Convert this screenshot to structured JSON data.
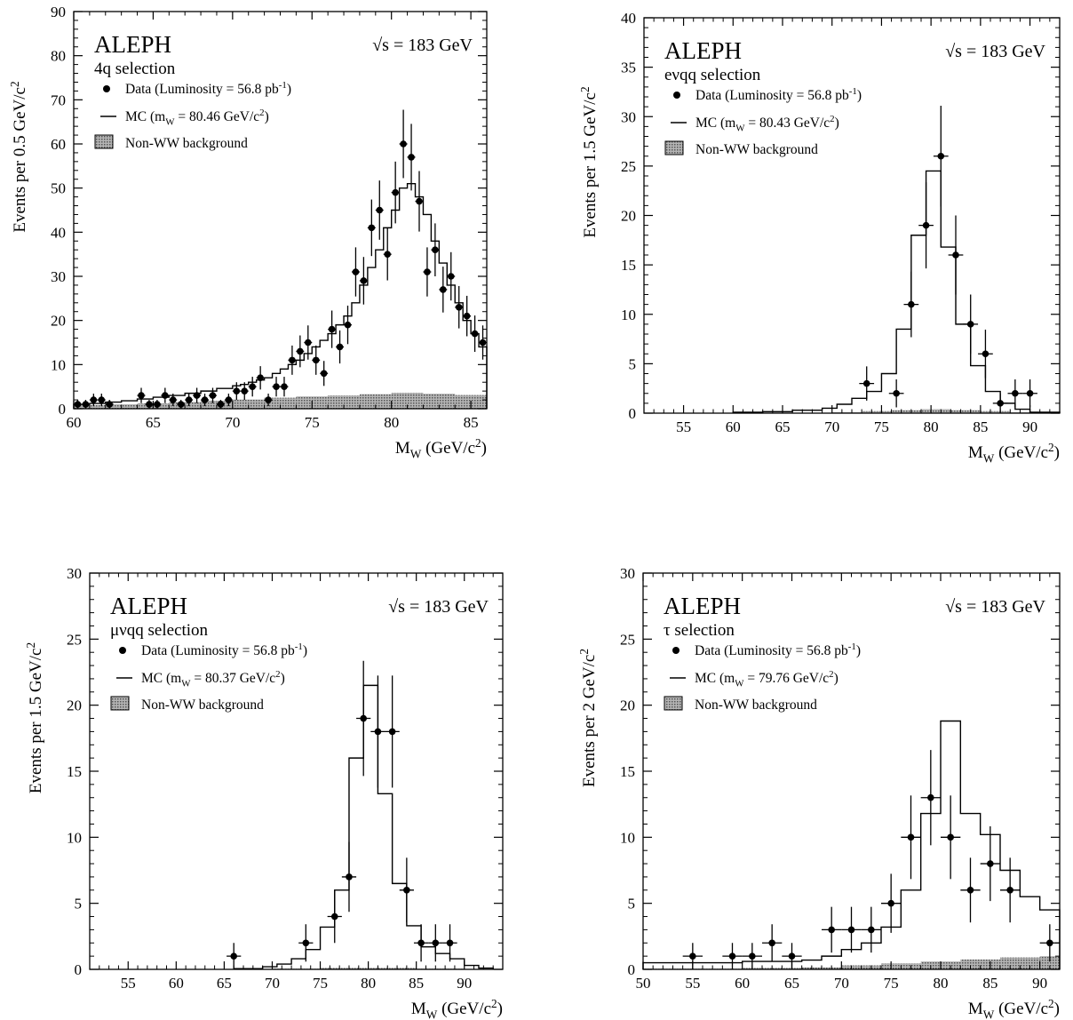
{
  "colors": {
    "ink": "#000000",
    "background_fill": "#9a9a9a",
    "paper": "#ffffff"
  },
  "chart_data": [
    {
      "id": "four_q",
      "type": "histogram",
      "experiment": "ALEPH",
      "selection": "4q selection",
      "energy": "√s = 183 GeV",
      "ylabel": "Events per 0.5 GeV/c²",
      "xlabel": "M_W (GeV/c²)",
      "xlim": [
        60,
        86
      ],
      "ylim": [
        0,
        90
      ],
      "xticks": [
        60,
        65,
        70,
        75,
        80,
        85
      ],
      "yticks": [
        0,
        10,
        20,
        30,
        40,
        50,
        60,
        70,
        80,
        90
      ],
      "legend": {
        "data": "Data (Luminosity = 56.8 pb⁻¹)",
        "mc": "MC (m_W = 80.46 GeV/c²)",
        "bkg": "Non-WW background"
      },
      "data_points": {
        "bin_width": 0.5,
        "x": [
          60.25,
          60.75,
          61.25,
          61.75,
          62.25,
          64.25,
          64.75,
          65.25,
          65.75,
          66.25,
          66.75,
          67.25,
          67.75,
          68.25,
          68.75,
          69.25,
          69.75,
          70.25,
          70.75,
          71.25,
          71.75,
          72.25,
          72.75,
          73.25,
          73.75,
          74.25,
          74.75,
          75.25,
          75.75,
          76.25,
          76.75,
          77.25,
          77.75,
          78.25,
          78.75,
          79.25,
          79.75,
          80.25,
          80.75,
          81.25,
          81.75,
          82.25,
          82.75,
          83.25,
          83.75,
          84.25,
          84.75,
          85.25,
          85.75
        ],
        "y": [
          1,
          1,
          2,
          2,
          1,
          3,
          1,
          1,
          3,
          2,
          1,
          2,
          3,
          2,
          3,
          1,
          2,
          4,
          4,
          5,
          7,
          2,
          5,
          5,
          11,
          13,
          15,
          11,
          8,
          18,
          14,
          19,
          31,
          29,
          41,
          45,
          35,
          49,
          60,
          57,
          47,
          31,
          36,
          27,
          30,
          23,
          21,
          17,
          15
        ]
      },
      "mc_hist": {
        "edges": [
          60,
          61,
          62,
          63,
          64,
          65,
          66,
          67,
          68,
          69,
          70,
          70.5,
          71,
          71.5,
          72,
          72.5,
          73,
          73.5,
          74,
          74.5,
          75,
          75.5,
          76,
          76.5,
          77,
          77.5,
          78,
          78.5,
          79,
          79.5,
          80,
          80.5,
          81,
          81.5,
          82,
          82.5,
          83,
          83.5,
          84,
          84.5,
          85,
          85.5,
          86
        ],
        "values": [
          1,
          1.2,
          1.5,
          1.8,
          2.2,
          2.6,
          3,
          3.5,
          4,
          4.6,
          5.2,
          5.5,
          6,
          6.5,
          7,
          8,
          9,
          10,
          11,
          12.5,
          14,
          15.5,
          17,
          19,
          21,
          24,
          28,
          32,
          36,
          41,
          45,
          50,
          51,
          48,
          44,
          38,
          33,
          28,
          24,
          20,
          17,
          14
        ]
      },
      "bkg_hist": {
        "edges": [
          60,
          62,
          64,
          66,
          68,
          70,
          72,
          74,
          76,
          78,
          80,
          82,
          84,
          86
        ],
        "values": [
          0.8,
          1,
          1.2,
          1.5,
          1.8,
          2.1,
          2.5,
          2.8,
          3,
          3.3,
          3.6,
          3.4,
          3.1
        ]
      }
    },
    {
      "id": "e_nu_qq",
      "type": "histogram",
      "experiment": "ALEPH",
      "selection": "eνqq selection",
      "energy": "√s = 183 GeV",
      "ylabel": "Events per 1.5 GeV/c²",
      "xlabel": "M_W (GeV/c²)",
      "xlim": [
        51,
        93
      ],
      "ylim": [
        0,
        40
      ],
      "xticks": [
        55,
        60,
        65,
        70,
        75,
        80,
        85,
        90
      ],
      "yticks": [
        0,
        5,
        10,
        15,
        20,
        25,
        30,
        35,
        40
      ],
      "legend": {
        "data": "Data (Luminosity = 56.8 pb⁻¹)",
        "mc": "MC (m_W = 80.43 GeV/c²)",
        "bkg": "Non-WW background"
      },
      "data_points": {
        "bin_width": 1.5,
        "x": [
          73.5,
          76.5,
          78,
          79.5,
          81,
          82.5,
          84,
          85.5,
          87,
          88.5,
          90
        ],
        "y": [
          3,
          2,
          11,
          19,
          26,
          16,
          9,
          6,
          1,
          2,
          2
        ]
      },
      "mc_hist": {
        "edges": [
          60,
          63,
          66,
          69,
          70.5,
          72,
          73.5,
          75,
          76.5,
          78,
          79.5,
          81,
          82.5,
          84,
          85.5,
          87,
          88.5,
          90,
          93
        ],
        "values": [
          0.1,
          0.15,
          0.3,
          0.5,
          0.9,
          1.5,
          2.2,
          4,
          8.5,
          18,
          24.5,
          16.8,
          9,
          4.8,
          2.2,
          1,
          0.4,
          0.1
        ]
      },
      "bkg_hist": {
        "edges": [
          70,
          73,
          76,
          79,
          82,
          85,
          88,
          91
        ],
        "values": [
          0.1,
          0.2,
          0.3,
          0.4,
          0.3,
          0.2,
          0.1
        ]
      }
    },
    {
      "id": "mu_nu_qq",
      "type": "histogram",
      "experiment": "ALEPH",
      "selection": "μνqq selection",
      "energy": "√s = 183 GeV",
      "ylabel": "Events per 1.5 GeV/c²",
      "xlabel": "M_W (GeV/c²)",
      "xlim": [
        51,
        94
      ],
      "ylim": [
        0,
        30
      ],
      "xticks": [
        55,
        60,
        65,
        70,
        75,
        80,
        85,
        90
      ],
      "yticks": [
        0,
        5,
        10,
        15,
        20,
        25,
        30
      ],
      "legend": {
        "data": "Data (Luminosity = 56.8 pb⁻¹)",
        "mc": "MC (m_W = 80.37 GeV/c²)",
        "bkg": "Non-WW background"
      },
      "data_points": {
        "bin_width": 1.5,
        "x": [
          66,
          73.5,
          76.5,
          78,
          79.5,
          81,
          82.5,
          84,
          85.5,
          87,
          88.5
        ],
        "y": [
          1,
          2,
          4,
          7,
          19,
          18,
          18,
          6,
          2,
          2,
          2
        ]
      },
      "mc_hist": {
        "edges": [
          66,
          69,
          70.5,
          72,
          73.5,
          75,
          76.5,
          78,
          79.5,
          81,
          82.5,
          84,
          85.5,
          87,
          88.5,
          90,
          91.5,
          93
        ],
        "values": [
          0.05,
          0.2,
          0.4,
          0.8,
          1.5,
          3.2,
          6,
          16,
          21.5,
          13.3,
          6.5,
          3.3,
          1.7,
          1.2,
          0.8,
          0.3,
          0.1
        ]
      },
      "bkg_hist": {
        "edges": [
          70,
          75,
          80,
          85,
          90
        ],
        "values": [
          0.05,
          0.1,
          0.1,
          0.05
        ]
      }
    },
    {
      "id": "tau",
      "type": "histogram",
      "experiment": "ALEPH",
      "selection": "τ selection",
      "energy": "√s = 183 GeV",
      "ylabel": "Events per 2 GeV/c²",
      "xlabel": "M_W (GeV/c²)",
      "xlim": [
        50,
        92
      ],
      "ylim": [
        0,
        30
      ],
      "xticks": [
        50,
        55,
        60,
        65,
        70,
        75,
        80,
        85,
        90
      ],
      "yticks": [
        0,
        5,
        10,
        15,
        20,
        25,
        30
      ],
      "legend": {
        "data": "Data (Luminosity = 56.8 pb⁻¹)",
        "mc": "MC (m_W = 79.76 GeV/c²)",
        "bkg": "Non-WW background"
      },
      "data_points": {
        "bin_width": 2,
        "x": [
          55,
          59,
          61,
          63,
          65,
          69,
          71,
          73,
          75,
          77,
          79,
          81,
          83,
          85,
          87,
          91
        ],
        "y": [
          1,
          1,
          1,
          2,
          1,
          3,
          3,
          3,
          5,
          10,
          13,
          10,
          6,
          8,
          6,
          2
        ]
      },
      "mc_hist": {
        "edges": [
          50,
          52,
          54,
          56,
          58,
          60,
          62,
          64,
          66,
          68,
          70,
          72,
          74,
          76,
          78,
          80,
          82,
          84,
          86,
          88,
          90,
          92
        ],
        "values": [
          0.5,
          0.5,
          0.5,
          0.5,
          0.5,
          0.6,
          0.6,
          0.6,
          0.7,
          1,
          1.5,
          2,
          3.2,
          6,
          11.8,
          18.8,
          11.8,
          10.2,
          7.5,
          5.5,
          4.5
        ]
      },
      "bkg_hist": {
        "edges": [
          50,
          60,
          66,
          70,
          74,
          78,
          82,
          86,
          90,
          92
        ],
        "values": [
          0.05,
          0.1,
          0.15,
          0.3,
          0.45,
          0.6,
          0.75,
          0.9,
          1
        ]
      }
    }
  ]
}
